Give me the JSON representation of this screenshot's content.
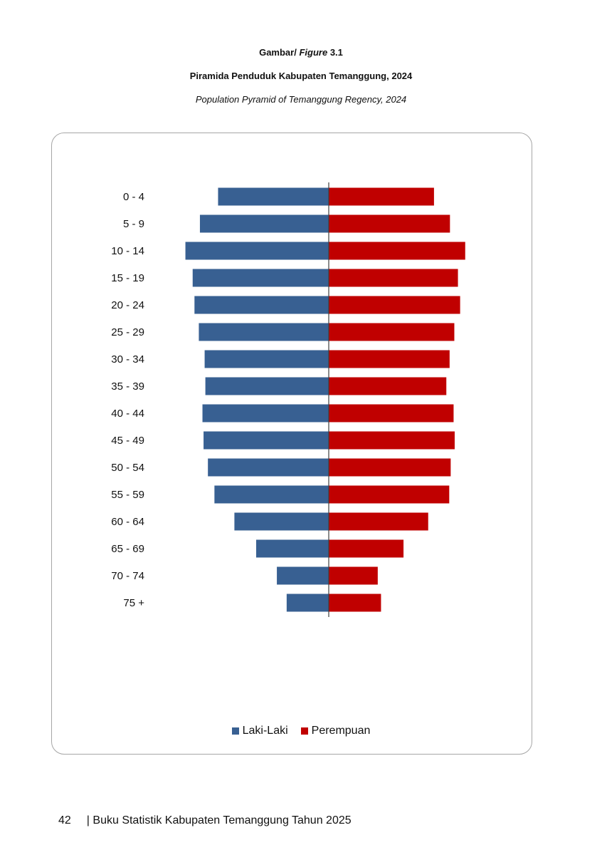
{
  "caption": {
    "figure_prefix": "Gambar/",
    "figure_word": "Figure",
    "figure_number": "3.1",
    "title": "Piramida Penduduk Kabupaten Temanggung, 2024",
    "subtitle": "Population Pyramid of Temanggung Regency, 2024"
  },
  "colors": {
    "male": "#386092",
    "female": "#c00000",
    "axis": "#404040"
  },
  "chart_data": {
    "type": "bar",
    "orientation": "horizontal-pyramid",
    "categories": [
      "0 - 4",
      "5 - 9",
      "10 - 14",
      "15 - 19",
      "20 - 24",
      "25 - 29",
      "30 - 34",
      "35 - 39",
      "40 - 44",
      "45 - 49",
      "50 - 54",
      "55 - 59",
      "60 - 64",
      "65 - 69",
      "70 - 74",
      "75 +"
    ],
    "series": [
      {
        "name": "Laki-Laki",
        "values": [
          30.5,
          35.5,
          39.5,
          37.5,
          37.0,
          35.8,
          34.2,
          34.0,
          34.8,
          34.5,
          33.3,
          31.5,
          26.0,
          20.0,
          14.3,
          11.6
        ]
      },
      {
        "name": "Perempuan",
        "values": [
          29.0,
          33.4,
          37.6,
          35.6,
          36.2,
          34.6,
          33.3,
          32.4,
          34.4,
          34.7,
          33.6,
          33.2,
          27.4,
          20.6,
          13.5,
          14.4
        ]
      }
    ],
    "legend_position": "bottom",
    "grid": false
  },
  "footer": {
    "page_number": "42",
    "book_title": "| Buku Statistik Kabupaten Temanggung Tahun 2025"
  }
}
